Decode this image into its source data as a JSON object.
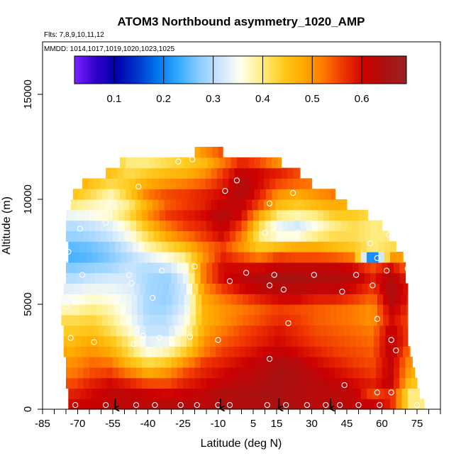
{
  "chart_data": {
    "type": "heatmap",
    "title": "ATOM3 Northbound asymmetry_1020_AMP",
    "subtitle_flights": "Flts: 7,8,9,10,11,12",
    "subtitle_dates": "MMDD: 1014,1017,1019,1020,1023,1025",
    "xlabel": "Latitude (deg N)",
    "ylabel": "Altitude (m)",
    "xlim": [
      -85,
      85
    ],
    "ylim": [
      0,
      17500
    ],
    "x_ticks": [
      -85,
      -70,
      -55,
      -40,
      -25,
      -10,
      5,
      15,
      30,
      45,
      60,
      75
    ],
    "x_tick_labels": [
      "-85",
      "-70",
      "-55",
      "-40",
      "-25",
      "-10",
      "5",
      "15",
      "30",
      "45",
      "60",
      "75"
    ],
    "y_ticks": [
      0,
      5000,
      10000,
      15000
    ],
    "y_tick_labels": [
      "0",
      "5000",
      "10000",
      "15000"
    ],
    "colorbar": {
      "range": [
        0.02,
        0.69
      ],
      "ticks": [
        0.1,
        0.2,
        0.3,
        0.4,
        0.5,
        0.6
      ],
      "tick_labels": [
        "0.1",
        "0.2",
        "0.3",
        "0.4",
        "0.5",
        "0.6"
      ],
      "colors": [
        "#7a22ff",
        "#3300cc",
        "#0000aa",
        "#0033cc",
        "#0077ee",
        "#33aaff",
        "#88ccff",
        "#cce6ff",
        "#ffffee",
        "#ffee88",
        "#ffcc22",
        "#ffaa00",
        "#ff7700",
        "#ee3300",
        "#cc0000",
        "#aa1111",
        "#992222"
      ]
    },
    "latitudes": [
      -72,
      -64,
      -56,
      -48,
      -40,
      -32,
      -24,
      -16,
      -8,
      0,
      8,
      16,
      24,
      32,
      40,
      48,
      56,
      64,
      72
    ],
    "altitudes": [
      250,
      750,
      1250,
      1750,
      2250,
      2750,
      3250,
      3750,
      4250,
      4750,
      5250,
      5750,
      6250,
      6750,
      7250,
      7750,
      8250,
      8750,
      9250,
      9750,
      10250,
      10750,
      11250,
      11750,
      12250
    ],
    "lat_coverage_by_altitude": [
      [
        -74,
        78
      ],
      [
        -74,
        76
      ],
      [
        -75,
        75
      ],
      [
        -75,
        74
      ],
      [
        -75,
        73
      ],
      [
        -76,
        72
      ],
      [
        -76,
        71
      ],
      [
        -76,
        71
      ],
      [
        -77,
        71
      ],
      [
        -77,
        71
      ],
      [
        -77,
        71
      ],
      [
        -76,
        71
      ],
      [
        -75,
        70
      ],
      [
        -75,
        70
      ],
      [
        -74,
        69
      ],
      [
        -74,
        66
      ],
      [
        -75,
        63
      ],
      [
        -75,
        60
      ],
      [
        -75,
        54
      ],
      [
        -73,
        45
      ],
      [
        -72,
        40
      ],
      [
        -68,
        30
      ],
      [
        -58,
        25
      ],
      [
        -52,
        17
      ],
      [
        -20,
        -8
      ]
    ],
    "values": [
      [
        0.6,
        0.61,
        0.62,
        0.62,
        0.63,
        0.63,
        0.63,
        0.63,
        0.64,
        0.64,
        0.64,
        0.64,
        0.64,
        0.63,
        0.63,
        0.62,
        0.61,
        0.58,
        0.4
      ],
      [
        0.58,
        0.6,
        0.62,
        0.62,
        0.61,
        0.6,
        0.61,
        0.62,
        0.64,
        0.64,
        0.65,
        0.65,
        0.64,
        0.63,
        0.63,
        0.62,
        0.55,
        0.58,
        0.4
      ],
      [
        0.55,
        0.58,
        0.6,
        0.58,
        0.55,
        0.55,
        0.58,
        0.6,
        0.62,
        0.63,
        0.64,
        0.65,
        0.64,
        0.63,
        0.62,
        0.6,
        0.58,
        0.62,
        0.45
      ],
      [
        0.52,
        0.55,
        0.56,
        0.52,
        0.48,
        0.5,
        0.55,
        0.58,
        0.6,
        0.62,
        0.63,
        0.65,
        0.64,
        0.62,
        0.6,
        0.58,
        0.56,
        0.62,
        0.48
      ],
      [
        0.5,
        0.53,
        0.52,
        0.46,
        0.42,
        0.44,
        0.5,
        0.56,
        0.58,
        0.6,
        0.62,
        0.64,
        0.63,
        0.6,
        0.58,
        0.56,
        0.55,
        0.62,
        0.5
      ],
      [
        0.48,
        0.5,
        0.48,
        0.42,
        0.36,
        0.38,
        0.44,
        0.52,
        0.56,
        0.58,
        0.6,
        0.62,
        0.6,
        0.58,
        0.56,
        0.55,
        0.54,
        0.63,
        0.52
      ],
      [
        0.46,
        0.48,
        0.45,
        0.4,
        0.33,
        0.34,
        0.4,
        0.5,
        0.54,
        0.56,
        0.58,
        0.6,
        0.58,
        0.56,
        0.55,
        0.54,
        0.53,
        0.63,
        0.55
      ],
      [
        0.44,
        0.45,
        0.42,
        0.37,
        0.31,
        0.31,
        0.37,
        0.48,
        0.52,
        0.55,
        0.57,
        0.59,
        0.57,
        0.55,
        0.54,
        0.53,
        0.52,
        0.62,
        0.55
      ],
      [
        0.42,
        0.43,
        0.4,
        0.35,
        0.3,
        0.3,
        0.35,
        0.47,
        0.5,
        0.53,
        0.55,
        0.57,
        0.56,
        0.54,
        0.53,
        0.52,
        0.5,
        0.6,
        0.55
      ],
      [
        0.38,
        0.4,
        0.38,
        0.34,
        0.29,
        0.29,
        0.33,
        0.47,
        0.5,
        0.52,
        0.54,
        0.56,
        0.55,
        0.54,
        0.53,
        0.52,
        0.5,
        0.62,
        0.56
      ],
      [
        0.35,
        0.37,
        0.36,
        0.34,
        0.29,
        0.28,
        0.32,
        0.48,
        0.52,
        0.55,
        0.58,
        0.6,
        0.6,
        0.58,
        0.58,
        0.56,
        0.53,
        0.64,
        0.58
      ],
      [
        0.33,
        0.34,
        0.34,
        0.33,
        0.29,
        0.28,
        0.32,
        0.5,
        0.56,
        0.6,
        0.62,
        0.63,
        0.63,
        0.62,
        0.62,
        0.6,
        0.56,
        0.65,
        0.58
      ],
      [
        0.3,
        0.31,
        0.32,
        0.32,
        0.29,
        0.28,
        0.33,
        0.52,
        0.6,
        0.62,
        0.64,
        0.65,
        0.65,
        0.64,
        0.64,
        0.63,
        0.58,
        0.64,
        0.56
      ],
      [
        0.27,
        0.28,
        0.29,
        0.31,
        0.3,
        0.31,
        0.36,
        0.52,
        0.6,
        0.6,
        0.6,
        0.62,
        0.62,
        0.62,
        0.62,
        0.6,
        0.55,
        0.6,
        0.52
      ],
      [
        0.24,
        0.25,
        0.27,
        0.3,
        0.33,
        0.36,
        0.4,
        0.5,
        0.58,
        0.55,
        0.52,
        0.56,
        0.55,
        0.55,
        0.54,
        0.52,
        0.15,
        0.5,
        0.48
      ],
      [
        0.25,
        0.26,
        0.28,
        0.32,
        0.38,
        0.42,
        0.46,
        0.52,
        0.56,
        0.5,
        0.44,
        0.46,
        0.48,
        0.48,
        0.46,
        0.44,
        0.4,
        0.42,
        0.42
      ],
      [
        0.28,
        0.29,
        0.31,
        0.35,
        0.42,
        0.48,
        0.52,
        0.56,
        0.6,
        0.52,
        0.4,
        0.36,
        0.36,
        0.4,
        0.42,
        0.42,
        0.4,
        0.4,
        0.4
      ],
      [
        0.3,
        0.31,
        0.33,
        0.38,
        0.46,
        0.52,
        0.56,
        0.58,
        0.62,
        0.56,
        0.42,
        0.34,
        0.32,
        0.36,
        0.4,
        0.42,
        0.4,
        0.4,
        0.4
      ],
      [
        0.34,
        0.35,
        0.37,
        0.42,
        0.5,
        0.56,
        0.58,
        0.6,
        0.64,
        0.6,
        0.48,
        0.4,
        0.38,
        0.4,
        0.44,
        0.44,
        0.42,
        0.4,
        0.4
      ],
      [
        0.4,
        0.38,
        0.36,
        0.4,
        0.48,
        0.54,
        0.56,
        0.58,
        0.62,
        0.62,
        0.55,
        0.46,
        0.44,
        0.46,
        0.48,
        0.46,
        0.44,
        0.4,
        0.4
      ],
      [
        0.45,
        0.42,
        0.38,
        0.44,
        0.52,
        0.55,
        0.56,
        0.58,
        0.6,
        0.64,
        0.58,
        0.5,
        0.48,
        0.5,
        0.52,
        0.5,
        0.45,
        0.4,
        0.4
      ],
      [
        0.48,
        0.45,
        0.42,
        0.44,
        0.48,
        0.5,
        0.52,
        0.54,
        0.58,
        0.64,
        0.6,
        0.55,
        0.53,
        0.52,
        0.5,
        0.48,
        0.45,
        0.4,
        0.4
      ],
      [
        0.5,
        0.48,
        0.45,
        0.42,
        0.44,
        0.46,
        0.47,
        0.5,
        0.56,
        0.62,
        0.6,
        0.58,
        0.55,
        0.52,
        0.5,
        0.48,
        0.45,
        0.4,
        0.4
      ],
      [
        0.5,
        0.48,
        0.46,
        0.4,
        0.4,
        0.42,
        0.44,
        0.46,
        0.52,
        0.58,
        0.55,
        0.5,
        0.48,
        0.46,
        0.45,
        0.45,
        0.45,
        0.4,
        0.4
      ],
      [
        0.45,
        0.45,
        0.45,
        0.42,
        0.42,
        0.42,
        0.45,
        0.5,
        0.55,
        0.55,
        0.5,
        0.45,
        0.45,
        0.45,
        0.45,
        0.45,
        0.45,
        0.4,
        0.4
      ]
    ],
    "sample_points": [
      [
        -71,
        200
      ],
      [
        -58,
        200
      ],
      [
        -45,
        200
      ],
      [
        -37,
        200
      ],
      [
        -26,
        200
      ],
      [
        -19,
        200
      ],
      [
        -10,
        200
      ],
      [
        -5,
        200
      ],
      [
        11,
        200
      ],
      [
        19,
        200
      ],
      [
        28,
        200
      ],
      [
        36,
        200
      ],
      [
        42,
        200
      ],
      [
        50,
        200
      ],
      [
        59,
        200
      ],
      [
        75,
        200
      ],
      [
        64,
        800
      ],
      [
        58,
        800
      ],
      [
        44,
        1150
      ],
      [
        12,
        2400
      ],
      [
        -73,
        3400
      ],
      [
        -63,
        3200
      ],
      [
        -46,
        3100
      ],
      [
        -42,
        3500
      ],
      [
        -35,
        3400
      ],
      [
        -22,
        3450
      ],
      [
        -10,
        3300
      ],
      [
        20,
        4100
      ],
      [
        58,
        4300
      ],
      [
        64,
        3300
      ],
      [
        66,
        2800
      ],
      [
        74,
        3000
      ],
      [
        -79,
        5500
      ],
      [
        -68,
        6400
      ],
      [
        -48,
        6400
      ],
      [
        -38,
        5300
      ],
      [
        -34,
        6600
      ],
      [
        -24,
        6600
      ],
      [
        -20,
        6800
      ],
      [
        -5,
        6100
      ],
      [
        2,
        6500
      ],
      [
        12,
        5900
      ],
      [
        14,
        6400
      ],
      [
        18,
        5700
      ],
      [
        31,
        6400
      ],
      [
        43,
        5600
      ],
      [
        49,
        6400
      ],
      [
        58,
        7200
      ],
      [
        56,
        5900
      ],
      [
        62,
        6600
      ],
      [
        71,
        6700
      ],
      [
        -74,
        7500
      ],
      [
        -69,
        8600
      ],
      [
        -58,
        8900
      ],
      [
        -47,
        6000
      ],
      [
        10,
        8400
      ],
      [
        24,
        8400
      ],
      [
        55,
        7900
      ],
      [
        63,
        8300
      ],
      [
        -74,
        9800
      ],
      [
        -44,
        10600
      ],
      [
        -7,
        10400
      ],
      [
        -2,
        10900
      ],
      [
        12,
        9800
      ],
      [
        22,
        10300
      ],
      [
        -27,
        11800
      ],
      [
        -21,
        11900
      ],
      [
        -75,
        4900
      ],
      [
        -71,
        5100
      ]
    ],
    "flight_markers_lat": [
      -54,
      -9,
      16,
      38
    ]
  }
}
